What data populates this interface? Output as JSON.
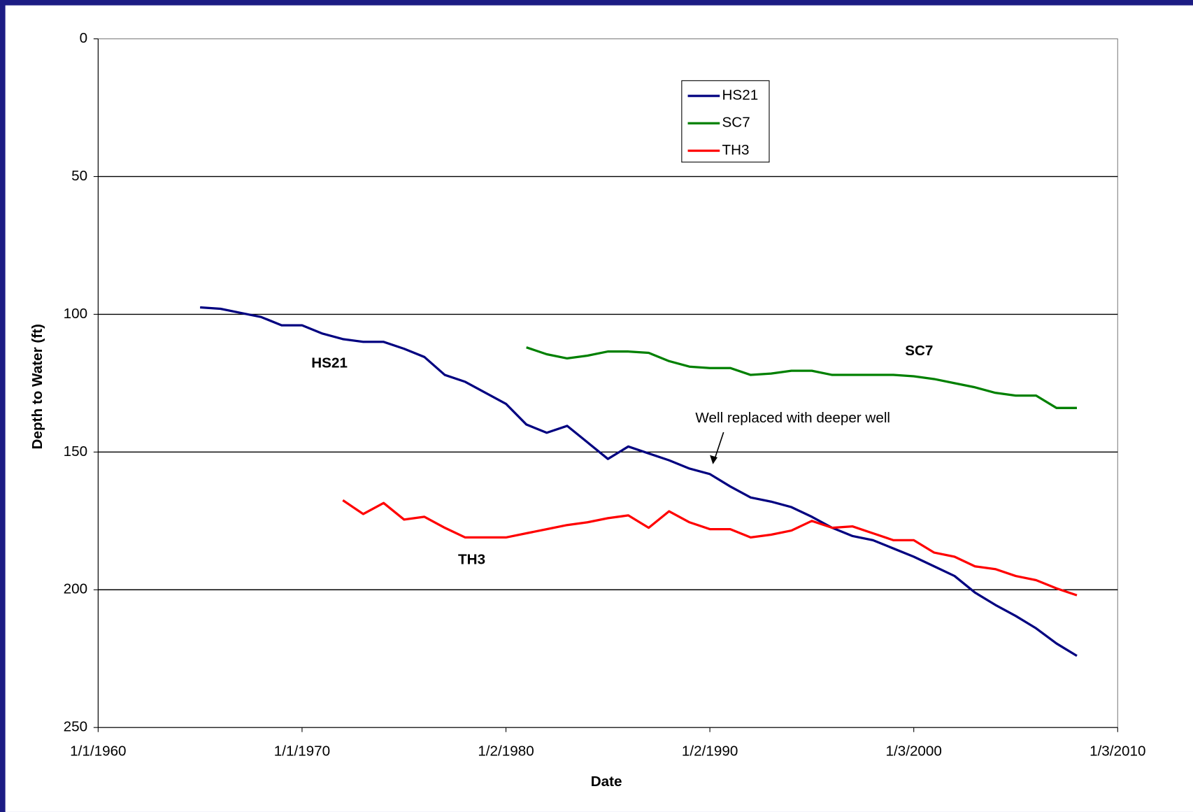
{
  "chart_data": {
    "type": "line",
    "x_label": "Date",
    "y_label": "Depth to Water (ft)",
    "xlim": [
      1960,
      2010
    ],
    "xticks": [
      {
        "value": 1960,
        "label": "1/1/1960"
      },
      {
        "value": 1970,
        "label": "1/1/1970"
      },
      {
        "value": 1980,
        "label": "1/2/1980"
      },
      {
        "value": 1990,
        "label": "1/2/1990"
      },
      {
        "value": 2000,
        "label": "1/3/2000"
      },
      {
        "value": 2010,
        "label": "1/3/2010"
      }
    ],
    "ylim": [
      0,
      250
    ],
    "yticks": [
      0,
      50,
      100,
      150,
      200,
      250
    ],
    "y_inverted": true,
    "grid": true,
    "legend": "top-center",
    "series": [
      {
        "name": "HS21",
        "color": "#000080",
        "x": [
          1965,
          1966,
          1967,
          1968,
          1969,
          1970,
          1971,
          1972,
          1973,
          1974,
          1975,
          1976,
          1977,
          1978,
          1979,
          1980,
          1981,
          1982,
          1983,
          1984,
          1985,
          1986,
          1987,
          1988,
          1989,
          1990,
          1991,
          1992,
          1993,
          1994,
          1995,
          1996,
          1997,
          1998,
          1999,
          2000,
          2001,
          2002,
          2003,
          2004,
          2005,
          2006,
          2007,
          2008
        ],
        "values": [
          97.5,
          98,
          99.5,
          101,
          104,
          104,
          107,
          109,
          110,
          110,
          112.5,
          115.5,
          122,
          124.5,
          128.5,
          132.5,
          140,
          143,
          140.5,
          146.5,
          152.5,
          148,
          150.5,
          153,
          156,
          158,
          162.5,
          166.5,
          168,
          170,
          173.5,
          177.5,
          180.5,
          182,
          185,
          188,
          191.5,
          195,
          201,
          205.5,
          209.5,
          214,
          219.5,
          224
        ]
      },
      {
        "name": "SC7",
        "color": "#008000",
        "x": [
          1981,
          1982,
          1983,
          1984,
          1985,
          1986,
          1987,
          1988,
          1989,
          1990,
          1991,
          1992,
          1993,
          1994,
          1995,
          1996,
          1997,
          1998,
          1999,
          2000,
          2001,
          2002,
          2003,
          2004,
          2005,
          2006,
          2007,
          2008
        ],
        "values": [
          112,
          114.5,
          116,
          115,
          113.5,
          113.5,
          114,
          117,
          119,
          119.5,
          119.5,
          122,
          121.5,
          120.5,
          120.5,
          122,
          122,
          122,
          122,
          122.5,
          123.5,
          125,
          126.5,
          128.5,
          129.5,
          129.5,
          134,
          134
        ]
      },
      {
        "name": "TH3",
        "color": "#ff0000",
        "x": [
          1972,
          1973,
          1974,
          1975,
          1976,
          1977,
          1978,
          1979,
          1980,
          1981,
          1982,
          1983,
          1984,
          1985,
          1986,
          1987,
          1988,
          1989,
          1990,
          1991,
          1992,
          1993,
          1994,
          1995,
          1996,
          1997,
          1998,
          1999,
          2000,
          2001,
          2002,
          2003,
          2004,
          2005,
          2006,
          2007,
          2008
        ],
        "values": [
          167.5,
          172.5,
          168.5,
          174.5,
          173.5,
          177.5,
          181,
          181,
          181,
          179.5,
          178,
          176.5,
          175.5,
          174,
          173,
          177.5,
          171.5,
          175.5,
          178,
          178,
          181,
          180,
          178.5,
          175,
          177.5,
          177,
          179.5,
          182,
          182,
          186.5,
          188,
          191.5,
          192.5,
          195,
          196.5,
          199.5,
          202
        ]
      }
    ],
    "annotations": [
      {
        "text": "HS21",
        "color": "#000080"
      },
      {
        "text": "SC7",
        "color": "#008000"
      },
      {
        "text": "TH3",
        "color": "#ff0000"
      },
      {
        "text": "Well replaced with deeper well",
        "color": "#000000"
      }
    ]
  }
}
